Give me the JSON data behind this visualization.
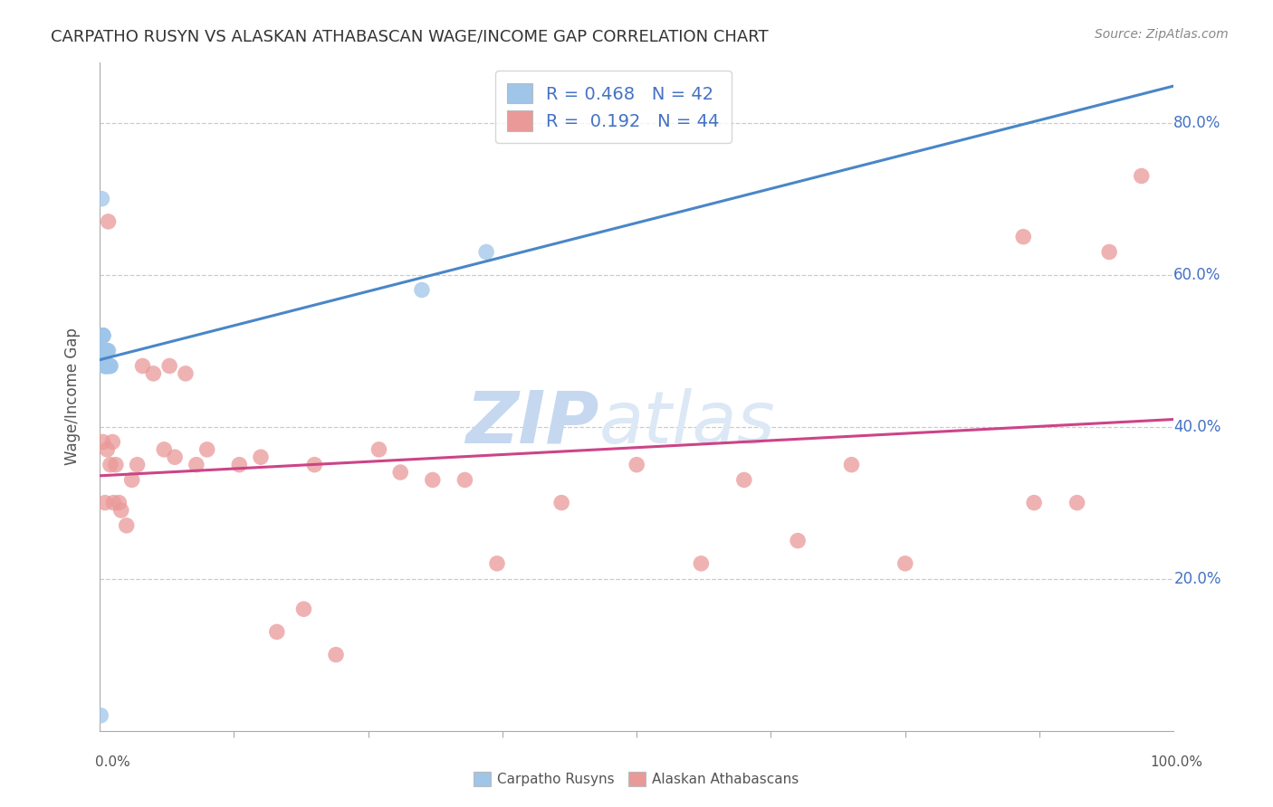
{
  "title": "CARPATHO RUSYN VS ALASKAN ATHABASCAN WAGE/INCOME GAP CORRELATION CHART",
  "source": "Source: ZipAtlas.com",
  "ylabel": "Wage/Income Gap",
  "ytick_vals": [
    0.2,
    0.4,
    0.6,
    0.8
  ],
  "xlim": [
    0.0,
    1.0
  ],
  "ylim": [
    0.0,
    0.88
  ],
  "blue_R": 0.468,
  "blue_N": 42,
  "pink_R": 0.192,
  "pink_N": 44,
  "blue_color": "#9fc5e8",
  "pink_color": "#ea9999",
  "blue_line_color": "#4a86c8",
  "pink_line_color": "#cc4488",
  "tick_label_color": "#4472c4",
  "watermark_zip": "ZIP",
  "watermark_atlas": "atlas",
  "watermark_color": "#dce8f5",
  "blue_x": [
    0.001,
    0.002,
    0.002,
    0.003,
    0.003,
    0.003,
    0.003,
    0.003,
    0.003,
    0.003,
    0.003,
    0.004,
    0.004,
    0.004,
    0.004,
    0.004,
    0.004,
    0.004,
    0.004,
    0.005,
    0.005,
    0.005,
    0.005,
    0.005,
    0.005,
    0.005,
    0.006,
    0.006,
    0.006,
    0.006,
    0.007,
    0.007,
    0.007,
    0.007,
    0.008,
    0.008,
    0.009,
    0.009,
    0.01,
    0.01,
    0.3,
    0.36
  ],
  "blue_y": [
    0.02,
    0.7,
    0.5,
    0.5,
    0.52,
    0.52,
    0.52,
    0.52,
    0.52,
    0.52,
    0.52,
    0.5,
    0.5,
    0.5,
    0.5,
    0.5,
    0.5,
    0.5,
    0.5,
    0.48,
    0.48,
    0.5,
    0.5,
    0.48,
    0.5,
    0.48,
    0.5,
    0.5,
    0.48,
    0.48,
    0.5,
    0.5,
    0.48,
    0.48,
    0.5,
    0.48,
    0.48,
    0.48,
    0.48,
    0.48,
    0.58,
    0.63
  ],
  "pink_x": [
    0.003,
    0.005,
    0.007,
    0.008,
    0.01,
    0.012,
    0.013,
    0.015,
    0.018,
    0.02,
    0.025,
    0.03,
    0.035,
    0.04,
    0.05,
    0.06,
    0.065,
    0.07,
    0.08,
    0.09,
    0.1,
    0.13,
    0.15,
    0.165,
    0.19,
    0.2,
    0.22,
    0.26,
    0.28,
    0.31,
    0.34,
    0.37,
    0.43,
    0.5,
    0.56,
    0.6,
    0.65,
    0.7,
    0.75,
    0.86,
    0.87,
    0.91,
    0.94,
    0.97
  ],
  "pink_y": [
    0.38,
    0.3,
    0.37,
    0.67,
    0.35,
    0.38,
    0.3,
    0.35,
    0.3,
    0.29,
    0.27,
    0.33,
    0.35,
    0.48,
    0.47,
    0.37,
    0.48,
    0.36,
    0.47,
    0.35,
    0.37,
    0.35,
    0.36,
    0.13,
    0.16,
    0.35,
    0.1,
    0.37,
    0.34,
    0.33,
    0.33,
    0.22,
    0.3,
    0.35,
    0.22,
    0.33,
    0.25,
    0.35,
    0.22,
    0.65,
    0.3,
    0.3,
    0.63,
    0.73
  ]
}
